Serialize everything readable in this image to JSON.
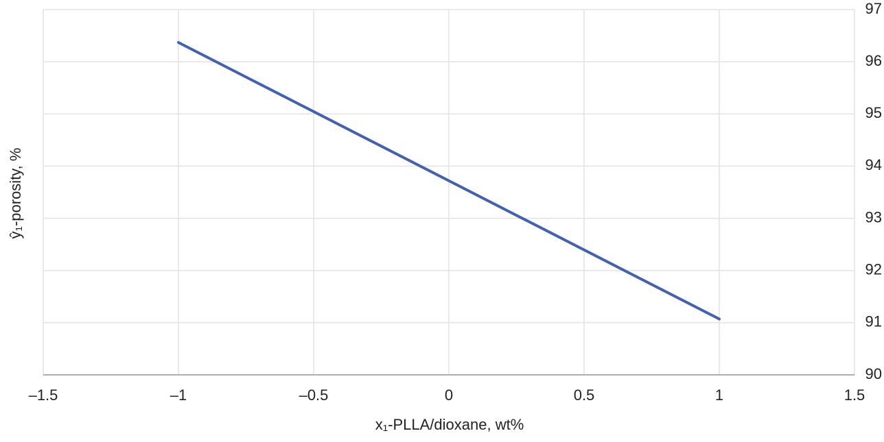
{
  "chart_data": {
    "type": "line",
    "x_label": "x₁-PLLA/dioxane, wt%",
    "y_label": "ŷ₁-porosity, %",
    "x": [
      -1,
      1
    ],
    "series": [
      {
        "color": "#4361b0",
        "values": [
          96.37,
          91.07
        ]
      }
    ],
    "xlim": [
      -1.5,
      1.5
    ],
    "xticks": [
      {
        "value": -1.5,
        "label": "–1.5"
      },
      {
        "value": -1,
        "label": "–1"
      },
      {
        "value": -0.5,
        "label": "–0.5"
      },
      0,
      0.5,
      1,
      1.5
    ],
    "ylim": [
      90,
      97
    ],
    "yticks": [
      90,
      91,
      92,
      93,
      94,
      95,
      96,
      97
    ],
    "grid": true,
    "y_axis_side": "right"
  }
}
